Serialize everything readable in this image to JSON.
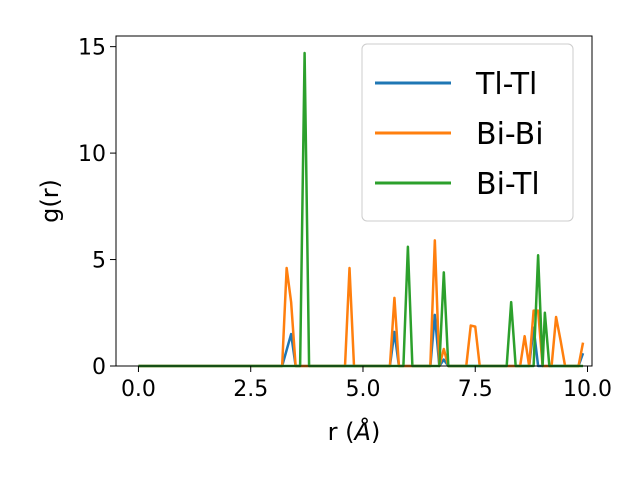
{
  "chart_data": {
    "type": "line",
    "title": "",
    "xlabel": "r (",
    "xlabel_unit": "Å",
    "xlabel_close": ")",
    "ylabel": "g(r)",
    "xlim": [
      -0.5,
      10.1
    ],
    "ylim": [
      0,
      15.5
    ],
    "xticks": [
      0.0,
      2.5,
      5.0,
      7.5,
      10.0
    ],
    "xtick_labels": [
      "0.0",
      "2.5",
      "5.0",
      "7.5",
      "10.0"
    ],
    "yticks": [
      0,
      5,
      10,
      15
    ],
    "ytick_labels": [
      "0",
      "5",
      "10",
      "15"
    ],
    "grid": false,
    "legend_position": "top-right",
    "series": [
      {
        "name": "Tl-Tl",
        "color": "#1f77b4",
        "points": [
          [
            0,
            0
          ],
          [
            3.2,
            0
          ],
          [
            3.4,
            1.5
          ],
          [
            3.5,
            0
          ],
          [
            5.6,
            0
          ],
          [
            5.7,
            1.6
          ],
          [
            5.8,
            0
          ],
          [
            6.5,
            0
          ],
          [
            6.6,
            2.4
          ],
          [
            6.7,
            0
          ],
          [
            6.8,
            0.3
          ],
          [
            6.9,
            0
          ],
          [
            8.7,
            0
          ],
          [
            8.8,
            1.8
          ],
          [
            8.9,
            0
          ],
          [
            9.8,
            0
          ],
          [
            9.9,
            0.6
          ]
        ]
      },
      {
        "name": "Bi-Bi",
        "color": "#ff7f0e",
        "points": [
          [
            0,
            0
          ],
          [
            3.2,
            0
          ],
          [
            3.3,
            4.6
          ],
          [
            3.4,
            3.0
          ],
          [
            3.5,
            0
          ],
          [
            4.6,
            0
          ],
          [
            4.7,
            4.6
          ],
          [
            4.8,
            0
          ],
          [
            5.6,
            0
          ],
          [
            5.7,
            3.2
          ],
          [
            5.8,
            0
          ],
          [
            6.5,
            0
          ],
          [
            6.6,
            5.9
          ],
          [
            6.7,
            0
          ],
          [
            6.8,
            0.8
          ],
          [
            6.9,
            0
          ],
          [
            7.3,
            0
          ],
          [
            7.4,
            1.9
          ],
          [
            7.5,
            1.85
          ],
          [
            7.6,
            0
          ],
          [
            8.5,
            0
          ],
          [
            8.6,
            1.4
          ],
          [
            8.7,
            0
          ],
          [
            8.8,
            2.6
          ],
          [
            8.9,
            2.6
          ],
          [
            9.0,
            0
          ],
          [
            9.2,
            0
          ],
          [
            9.3,
            2.3
          ],
          [
            9.4,
            1.2
          ],
          [
            9.5,
            0
          ],
          [
            9.8,
            0
          ],
          [
            9.9,
            1.1
          ]
        ]
      },
      {
        "name": "Bi-Tl",
        "color": "#2ca02c",
        "points": [
          [
            0,
            0
          ],
          [
            3.6,
            0
          ],
          [
            3.7,
            14.7
          ],
          [
            3.8,
            0
          ],
          [
            5.9,
            0
          ],
          [
            6.0,
            5.6
          ],
          [
            6.1,
            0
          ],
          [
            6.7,
            0
          ],
          [
            6.8,
            4.4
          ],
          [
            6.9,
            0
          ],
          [
            8.2,
            0
          ],
          [
            8.3,
            3.0
          ],
          [
            8.4,
            0
          ],
          [
            8.8,
            0
          ],
          [
            8.9,
            5.2
          ],
          [
            9.0,
            0
          ],
          [
            9.05,
            2.5
          ],
          [
            9.15,
            0
          ],
          [
            9.9,
            0
          ]
        ]
      }
    ]
  }
}
